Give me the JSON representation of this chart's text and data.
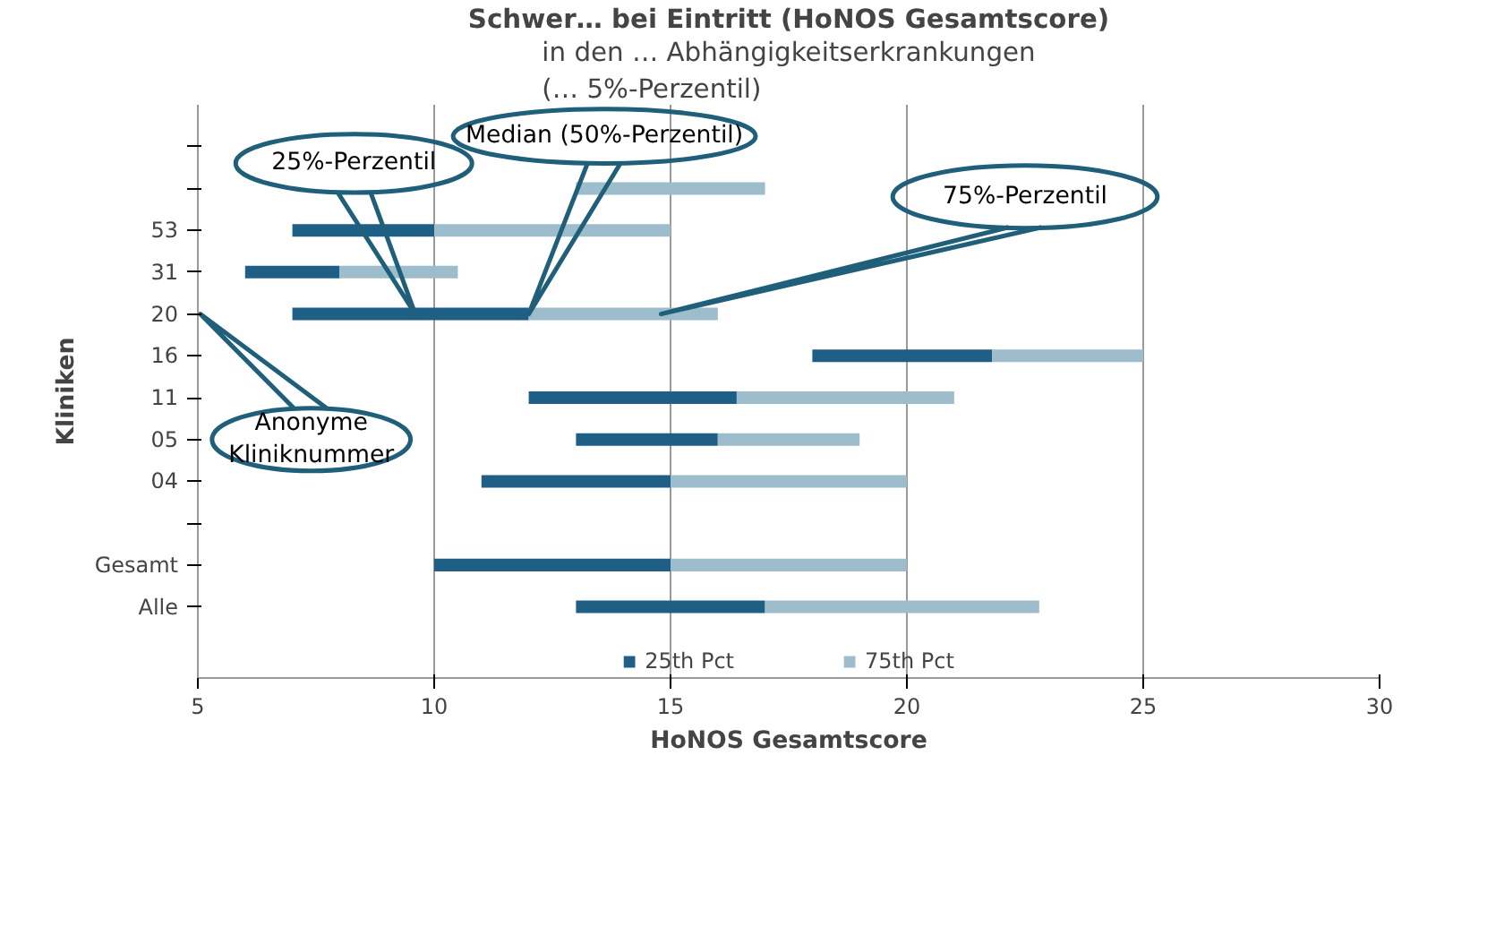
{
  "chart_data": {
    "type": "bar",
    "orientation": "horizontal",
    "title": "Schwer… bei Eintritt (HoNOS Gesamtscore)",
    "subtitle": "in den … Abhängigkeitserkrankungen\n(… 5%-Perzentil)",
    "xlabel": "HoNOS Gesamtscore",
    "ylabel": "Kliniken",
    "categories": [
      null,
      null,
      "53",
      "31",
      "20",
      "16",
      "11",
      "05",
      "04",
      null,
      "Gesamt",
      "Alle"
    ],
    "series": [
      {
        "name": "25th Pct",
        "color": "#1f5f86",
        "base": [
          null,
          null,
          7,
          6,
          7,
          18,
          12,
          13,
          11,
          null,
          10,
          13
        ],
        "values": [
          null,
          null,
          3,
          2,
          5,
          3.8,
          4.4,
          3,
          4,
          null,
          5,
          4
        ]
      },
      {
        "name": "75th Pct",
        "color": "#9dbccc",
        "base": [
          null,
          13,
          10,
          8,
          12,
          21.8,
          16.4,
          16,
          15,
          null,
          15,
          17
        ],
        "values": [
          null,
          4,
          5,
          2.5,
          4,
          3.2,
          4.6,
          3,
          5,
          null,
          5,
          5.8
        ]
      }
    ],
    "xlim": [
      5,
      30
    ],
    "xticks": [
      5,
      10,
      15,
      20,
      25,
      30
    ],
    "grid": "x",
    "legend": "bottom",
    "annotations": [
      "25%-Perzentil",
      "Median (50%-Perzentil)",
      "75%-Perzentil",
      "Anonyme\nKliniknummer"
    ]
  }
}
